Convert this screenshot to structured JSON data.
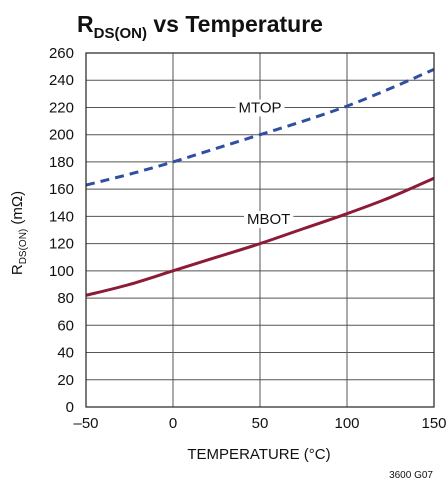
{
  "chart_data": {
    "type": "line",
    "title_main": "R",
    "title_sub": "DS(ON)",
    "title_rest": " vs Temperature",
    "xlabel": "TEMPERATURE (°C)",
    "ylabel_main": "R",
    "ylabel_sub": "DS(ON)",
    "ylabel_rest": " (mΩ)",
    "xlim": [
      -50,
      150
    ],
    "ylim": [
      0,
      260
    ],
    "x_ticks": [
      -50,
      0,
      50,
      100,
      150
    ],
    "x_tick_labels": [
      "–50",
      "0",
      "50",
      "100",
      "150"
    ],
    "y_ticks": [
      0,
      20,
      40,
      60,
      80,
      100,
      120,
      140,
      160,
      180,
      200,
      220,
      240,
      260
    ],
    "y_tick_labels": [
      "0",
      "20",
      "40",
      "60",
      "80",
      "100",
      "120",
      "140",
      "160",
      "180",
      "200",
      "220",
      "240",
      "260"
    ],
    "grid": true,
    "series": [
      {
        "name": "MTOP",
        "color": "#2f4fa0",
        "dash": true,
        "x": [
          -50,
          -25,
          0,
          25,
          50,
          75,
          100,
          125,
          150
        ],
        "y": [
          163,
          171,
          180,
          190,
          200,
          210,
          221,
          234,
          248
        ],
        "label_x": 50,
        "label_y": 220
      },
      {
        "name": "MBOT",
        "color": "#8c1c36",
        "dash": false,
        "x": [
          -50,
          -25,
          0,
          25,
          50,
          75,
          100,
          125,
          150
        ],
        "y": [
          82,
          90,
          100,
          110,
          120,
          131,
          142,
          154,
          168
        ],
        "label_x": 55,
        "label_y": 138
      }
    ],
    "figure_id": "3600 G07"
  }
}
